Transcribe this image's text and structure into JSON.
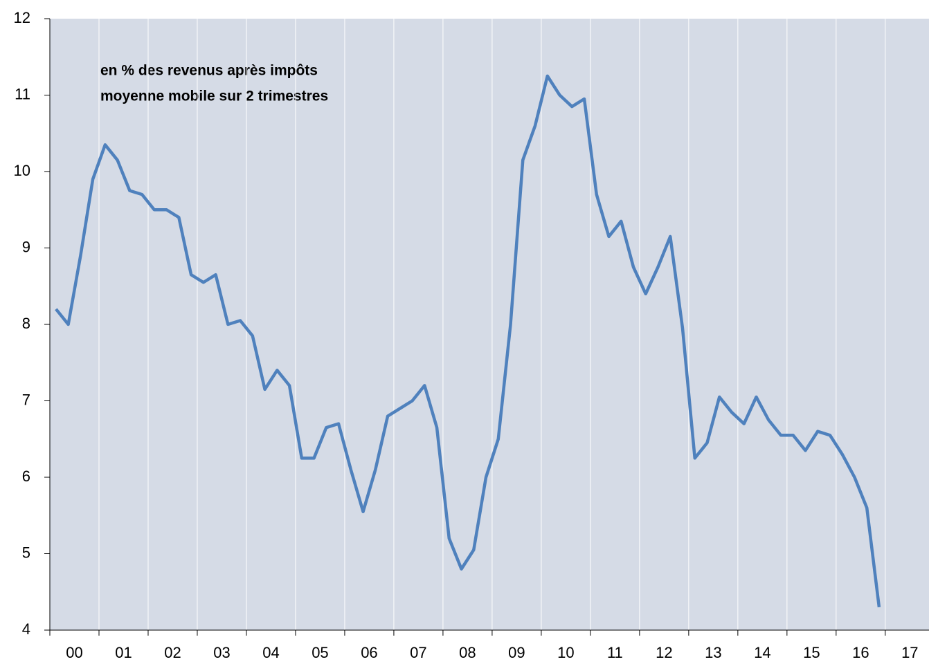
{
  "chart_data": {
    "type": "line",
    "annotations": [
      "en % des revenus après impôts",
      "moyenne mobile sur 2 trimestres"
    ],
    "x": [
      0.125,
      0.375,
      0.625,
      0.875,
      1.125,
      1.375,
      1.625,
      1.875,
      2.125,
      2.375,
      2.625,
      2.875,
      3.125,
      3.375,
      3.625,
      3.875,
      4.125,
      4.375,
      4.625,
      4.875,
      5.125,
      5.375,
      5.625,
      5.875,
      6.125,
      6.375,
      6.625,
      6.875,
      7.125,
      7.375,
      7.625,
      7.875,
      8.125,
      8.375,
      8.625,
      8.875,
      9.125,
      9.375,
      9.625,
      9.875,
      10.125,
      10.375,
      10.625,
      10.875,
      11.125,
      11.375,
      11.625,
      11.875,
      12.125,
      12.375,
      12.625,
      12.875,
      13.125,
      13.375,
      13.625,
      13.875,
      14.125,
      14.375,
      14.625,
      14.875,
      15.125,
      15.375,
      15.625,
      15.875,
      16.125,
      16.375,
      16.625,
      16.875
    ],
    "series": [
      {
        "color": "#4f81bd",
        "values": [
          8.2,
          8.0,
          8.9,
          9.9,
          10.35,
          10.15,
          9.75,
          9.7,
          9.5,
          9.5,
          9.4,
          8.65,
          8.55,
          8.65,
          8.0,
          8.05,
          7.85,
          7.15,
          7.4,
          7.2,
          6.25,
          6.25,
          6.65,
          6.7,
          6.1,
          5.55,
          6.1,
          6.8,
          6.9,
          7.0,
          7.2,
          6.65,
          5.2,
          4.8,
          5.05,
          6.0,
          6.5,
          8.0,
          10.15,
          10.6,
          11.25,
          11.0,
          10.85,
          10.95,
          9.7,
          9.15,
          9.35,
          8.75,
          8.4,
          8.75,
          9.15,
          7.95,
          6.25,
          6.45,
          7.05,
          6.85,
          6.7,
          7.05,
          6.75,
          6.55,
          6.55,
          6.35,
          6.6,
          6.55,
          6.3,
          6.0,
          5.6,
          4.3
        ]
      }
    ],
    "xlim": [
      0,
      17.89
    ],
    "xticks": [
      {
        "value": 0.5,
        "label": "00"
      },
      {
        "value": 1.5,
        "label": "01"
      },
      {
        "value": 2.5,
        "label": "02"
      },
      {
        "value": 3.5,
        "label": "03"
      },
      {
        "value": 4.5,
        "label": "04"
      },
      {
        "value": 5.5,
        "label": "05"
      },
      {
        "value": 6.5,
        "label": "06"
      },
      {
        "value": 7.5,
        "label": "07"
      },
      {
        "value": 8.5,
        "label": "08"
      },
      {
        "value": 9.5,
        "label": "09"
      },
      {
        "value": 10.5,
        "label": "10"
      },
      {
        "value": 11.5,
        "label": "11"
      },
      {
        "value": 12.5,
        "label": "12"
      },
      {
        "value": 13.5,
        "label": "13"
      },
      {
        "value": 14.5,
        "label": "14"
      },
      {
        "value": 15.5,
        "label": "15"
      },
      {
        "value": 16.5,
        "label": "16"
      },
      {
        "value": 17.5,
        "label": "17"
      }
    ],
    "ylim": [
      4,
      12
    ],
    "yticks": [
      4,
      5,
      6,
      7,
      8,
      9,
      10,
      11,
      12
    ],
    "grid": true
  }
}
